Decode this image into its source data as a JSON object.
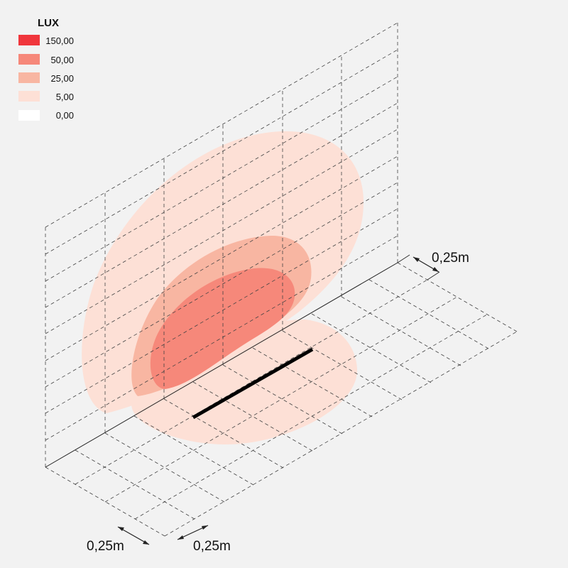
{
  "legend": {
    "title": "LUX",
    "items": [
      {
        "label": "150,00",
        "color": "#f0363c"
      },
      {
        "label": "50,00",
        "color": "#f6887a"
      },
      {
        "label": "25,00",
        "color": "#f8b6a2"
      },
      {
        "label": "5,00",
        "color": "#fde0d6"
      },
      {
        "label": "0,00",
        "color": "#ffffff"
      }
    ]
  },
  "dimensions": {
    "right": "0,25m",
    "bottom_left": "0,25m",
    "bottom_right": "0,25m"
  }
}
